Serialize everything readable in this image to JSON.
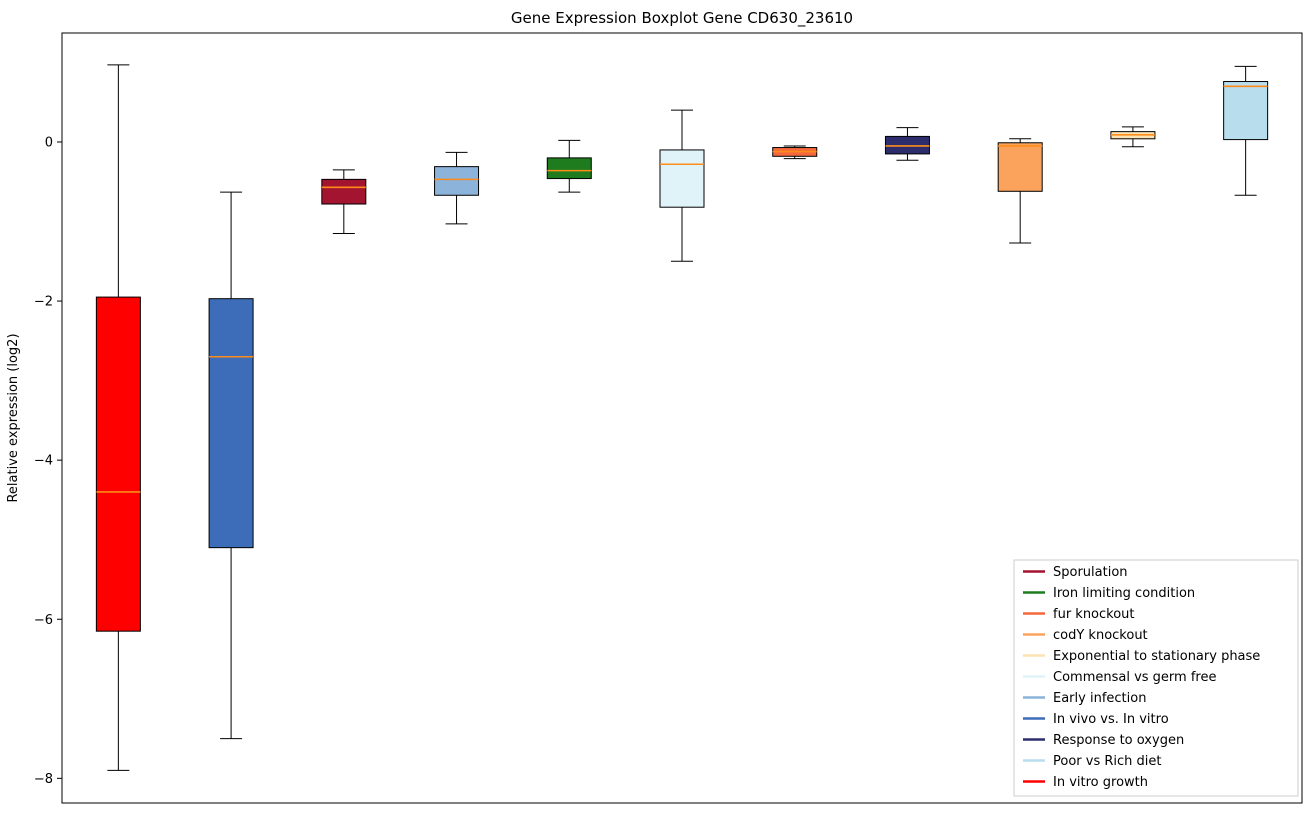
{
  "chart_data": {
    "type": "boxplot",
    "title": "Gene Expression Boxplot Gene CD630_23610",
    "xlabel": "",
    "ylabel": "Relative expression (log2)",
    "ylim": [
      -8.31,
      1.37
    ],
    "yticks": [
      0,
      -2,
      -4,
      -6,
      -8
    ],
    "grid": false,
    "median_color": "#ff8c1a",
    "box_edge_color": "#000000",
    "whisker_color": "#000000",
    "legend_position": "lower right",
    "series": [
      {
        "name": "In vitro growth",
        "color": "#fe0000",
        "whisker_low": -7.9,
        "q1": -6.15,
        "median": -4.4,
        "q3": -1.95,
        "whisker_high": 0.97
      },
      {
        "name": "In vivo vs. In vitro",
        "color": "#3d6cb8",
        "whisker_low": -7.5,
        "q1": -5.1,
        "median": -2.7,
        "q3": -1.97,
        "whisker_high": -0.63
      },
      {
        "name": "Sporulation",
        "color": "#a2142f",
        "whisker_low": -1.15,
        "q1": -0.78,
        "median": -0.57,
        "q3": -0.47,
        "whisker_high": -0.35
      },
      {
        "name": "Early infection",
        "color": "#8cb3d9",
        "whisker_low": -1.03,
        "q1": -0.67,
        "median": -0.47,
        "q3": -0.31,
        "whisker_high": -0.13
      },
      {
        "name": "Iron limiting condition",
        "color": "#1e7b1e",
        "whisker_low": -0.63,
        "q1": -0.46,
        "median": -0.36,
        "q3": -0.2,
        "whisker_high": 0.02
      },
      {
        "name": "Commensal vs germ free",
        "color": "#e0f3f9",
        "whisker_low": -1.5,
        "q1": -0.82,
        "median": -0.28,
        "q3": -0.1,
        "whisker_high": 0.4
      },
      {
        "name": "fur knockout",
        "color": "#f4683c",
        "whisker_low": -0.21,
        "q1": -0.18,
        "median": -0.12,
        "q3": -0.07,
        "whisker_high": -0.05
      },
      {
        "name": "Response to oxygen",
        "color": "#2d2d6e",
        "whisker_low": -0.23,
        "q1": -0.15,
        "median": -0.05,
        "q3": 0.07,
        "whisker_high": 0.18
      },
      {
        "name": "codY knockout",
        "color": "#fba35c",
        "whisker_low": -1.27,
        "q1": -0.62,
        "median": -0.05,
        "q3": -0.01,
        "whisker_high": 0.04
      },
      {
        "name": "Exponential to stationary phase",
        "color": "#fce3b3",
        "whisker_low": -0.06,
        "q1": 0.04,
        "median": 0.09,
        "q3": 0.13,
        "whisker_high": 0.19
      },
      {
        "name": "Poor vs Rich diet",
        "color": "#b8dded",
        "whisker_low": -0.67,
        "q1": 0.03,
        "median": 0.7,
        "q3": 0.76,
        "whisker_high": 0.95
      }
    ],
    "legend": [
      {
        "label": "Sporulation",
        "color": "#a2142f"
      },
      {
        "label": "Iron limiting condition",
        "color": "#1e7b1e"
      },
      {
        "label": "fur knockout",
        "color": "#f4683c"
      },
      {
        "label": "codY knockout",
        "color": "#fba35c"
      },
      {
        "label": "Exponential to stationary phase",
        "color": "#fce3b3"
      },
      {
        "label": "Commensal vs germ free",
        "color": "#e0f3f9"
      },
      {
        "label": "Early infection",
        "color": "#8cb3d9"
      },
      {
        "label": "In vivo vs. In vitro",
        "color": "#3d6cb8"
      },
      {
        "label": "Response to oxygen",
        "color": "#2d2d6e"
      },
      {
        "label": "Poor vs Rich diet",
        "color": "#b8dded"
      },
      {
        "label": "In vitro growth",
        "color": "#fe0000"
      }
    ]
  }
}
